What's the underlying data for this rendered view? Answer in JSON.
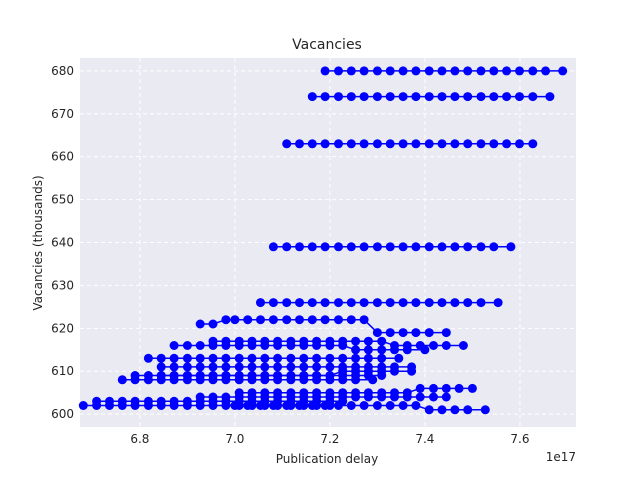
{
  "chart_data": {
    "type": "line",
    "title": "Vacancies",
    "xlabel": "Publication delay",
    "ylabel": "Vacancies (thousands)",
    "x_offset_label": "1e17",
    "x_scale_note": "x values in units of 1e17",
    "xlim": [
      6.674,
      7.718
    ],
    "ylim": [
      597,
      683
    ],
    "xticks": [
      6.8,
      7.0,
      7.2,
      7.4,
      7.6
    ],
    "xtick_labels": [
      "6.8",
      "7.0",
      "7.2",
      "7.4",
      "7.6"
    ],
    "yticks": [
      600,
      610,
      620,
      630,
      640,
      650,
      660,
      670,
      680
    ],
    "ytick_labels": [
      "600",
      "610",
      "620",
      "630",
      "640",
      "650",
      "660",
      "670",
      "680"
    ],
    "grid": true,
    "background": "#eaeaf2",
    "series_color": "#0000ff",
    "series": [
      {
        "x": [
          7.19,
          7.218,
          7.245,
          7.272,
          7.3,
          7.327,
          7.354,
          7.381,
          7.409,
          7.436,
          7.463,
          7.49,
          7.518,
          7.545,
          7.572,
          7.599,
          7.627,
          7.654,
          7.69
        ],
        "y": [
          680,
          680,
          680,
          680,
          680,
          680,
          680,
          680,
          680,
          680,
          680,
          680,
          680,
          680,
          680,
          680,
          680,
          680,
          680
        ]
      },
      {
        "x": [
          7.163,
          7.19,
          7.218,
          7.245,
          7.272,
          7.3,
          7.327,
          7.354,
          7.381,
          7.409,
          7.436,
          7.463,
          7.49,
          7.518,
          7.545,
          7.572,
          7.599,
          7.627,
          7.663
        ],
        "y": [
          674,
          674,
          674,
          674,
          674,
          674,
          674,
          674,
          674,
          674,
          674,
          674,
          674,
          674,
          674,
          674,
          674,
          674,
          674
        ]
      },
      {
        "x": [
          7.109,
          7.136,
          7.163,
          7.19,
          7.218,
          7.245,
          7.272,
          7.3,
          7.327,
          7.354,
          7.381,
          7.409,
          7.436,
          7.463,
          7.49,
          7.518,
          7.545,
          7.572,
          7.599,
          7.627
        ],
        "y": [
          663,
          663,
          663,
          663,
          663,
          663,
          663,
          663,
          663,
          663,
          663,
          663,
          663,
          663,
          663,
          663,
          663,
          663,
          663,
          663
        ]
      },
      {
        "x": [
          7.081,
          7.109,
          7.136,
          7.163,
          7.19,
          7.218,
          7.245,
          7.272,
          7.3,
          7.327,
          7.354,
          7.381,
          7.409,
          7.436,
          7.463,
          7.49,
          7.518,
          7.545,
          7.581
        ],
        "y": [
          639,
          639,
          639,
          639,
          639,
          639,
          639,
          639,
          639,
          639,
          639,
          639,
          639,
          639,
          639,
          639,
          639,
          639,
          639
        ]
      },
      {
        "x": [
          7.054,
          7.081,
          7.109,
          7.136,
          7.163,
          7.19,
          7.218,
          7.245,
          7.272,
          7.3,
          7.327,
          7.354,
          7.381,
          7.409,
          7.436,
          7.463,
          7.49,
          7.518,
          7.554
        ],
        "y": [
          626,
          626,
          626,
          626,
          626,
          626,
          626,
          626,
          626,
          626,
          626,
          626,
          626,
          626,
          626,
          626,
          626,
          626,
          626
        ]
      },
      {
        "x": [
          6.927,
          6.954,
          6.981,
          7.0,
          7.027,
          7.054,
          7.081,
          7.109,
          7.136,
          7.163,
          7.19,
          7.218,
          7.245,
          7.272,
          7.3,
          7.327,
          7.354,
          7.381,
          7.409,
          7.445
        ],
        "y": [
          621,
          621,
          622,
          622,
          622,
          622,
          622,
          622,
          622,
          622,
          622,
          622,
          622,
          622,
          619,
          619,
          619,
          619,
          619,
          619
        ]
      },
      {
        "x": [
          6.954,
          6.981,
          7.009,
          7.036,
          7.063,
          7.09,
          7.118,
          7.145,
          7.172,
          7.2,
          7.227,
          7.254,
          7.281,
          7.309,
          7.336,
          7.363,
          7.39,
          7.418,
          7.445,
          7.481
        ],
        "y": [
          617,
          617,
          617,
          617,
          617,
          617,
          617,
          617,
          617,
          617,
          617,
          617,
          617,
          617,
          616,
          616,
          616,
          616,
          616,
          616
        ]
      },
      {
        "x": [
          6.872,
          6.9,
          6.927,
          6.954,
          6.981,
          7.009,
          7.036,
          7.063,
          7.09,
          7.118,
          7.145,
          7.172,
          7.2,
          7.227,
          7.254,
          7.281,
          7.309,
          7.336,
          7.363,
          7.4
        ],
        "y": [
          616,
          616,
          616,
          616,
          616,
          616,
          616,
          616,
          616,
          616,
          616,
          616,
          616,
          616,
          615,
          615,
          615,
          615,
          615,
          615
        ]
      },
      {
        "x": [
          6.818,
          6.845,
          6.872,
          6.9,
          6.927,
          6.954,
          6.981,
          7.009,
          7.036,
          7.063,
          7.09,
          7.118,
          7.145,
          7.172,
          7.2,
          7.227,
          7.254,
          7.281,
          7.309,
          7.345
        ],
        "y": [
          613,
          613,
          613,
          613,
          613,
          613,
          613,
          613,
          613,
          613,
          613,
          613,
          613,
          613,
          613,
          613,
          613,
          613,
          613,
          613
        ]
      },
      {
        "x": [
          6.845,
          6.872,
          6.9,
          6.927,
          6.954,
          6.981,
          7.009,
          7.036,
          7.063,
          7.09,
          7.118,
          7.145,
          7.172,
          7.2,
          7.227,
          7.254,
          7.281,
          7.309,
          7.336,
          7.372
        ],
        "y": [
          611,
          611,
          611,
          611,
          611,
          611,
          611,
          611,
          611,
          611,
          611,
          611,
          611,
          611,
          611,
          611,
          611,
          611,
          611,
          611
        ]
      },
      {
        "x": [
          6.845,
          6.872,
          6.9,
          6.927,
          6.954,
          6.981,
          7.009,
          7.036,
          7.063,
          7.09,
          7.118,
          7.145,
          7.172,
          7.2,
          7.227,
          7.254,
          7.281,
          7.309,
          7.336,
          7.372
        ],
        "y": [
          609,
          609,
          609,
          609,
          609,
          609,
          609,
          609,
          609,
          609,
          609,
          609,
          609,
          609,
          610,
          610,
          610,
          610,
          610,
          610
        ]
      },
      {
        "x": [
          6.763,
          6.79,
          6.818,
          6.845,
          6.872,
          6.9,
          6.927,
          6.954,
          6.981,
          7.009,
          7.036,
          7.063,
          7.09,
          7.118,
          7.145,
          7.172,
          7.2,
          7.227,
          7.254,
          7.29
        ],
        "y": [
          608,
          608,
          608,
          608,
          608,
          608,
          608,
          608,
          608,
          608,
          608,
          608,
          608,
          608,
          608,
          608,
          608,
          608,
          608,
          608
        ]
      },
      {
        "x": [
          6.79,
          6.818,
          6.845,
          6.872,
          6.9,
          6.927,
          6.954,
          6.981,
          7.009,
          7.036,
          7.063,
          7.09,
          7.118,
          7.145,
          7.172,
          7.2,
          7.227,
          7.254,
          7.281,
          7.309
        ],
        "y": [
          609,
          609,
          609,
          609,
          609,
          609,
          609,
          609,
          609,
          609,
          609,
          609,
          609,
          609,
          609,
          609,
          609,
          609,
          609,
          609
        ]
      },
      {
        "x": [
          7.009,
          7.036,
          7.063,
          7.09,
          7.118,
          7.145,
          7.172,
          7.2,
          7.227,
          7.254,
          7.281,
          7.309,
          7.336,
          7.363,
          7.39,
          7.418,
          7.445,
          7.472,
          7.5
        ],
        "y": [
          605,
          605,
          605,
          605,
          605,
          605,
          605,
          605,
          605,
          605,
          605,
          605,
          605,
          605,
          606,
          606,
          606,
          606,
          606
        ]
      },
      {
        "x": [
          6.927,
          6.954,
          6.981,
          7.009,
          7.036,
          7.063,
          7.09,
          7.118,
          7.145,
          7.172,
          7.2,
          7.227,
          7.254,
          7.281,
          7.309,
          7.336,
          7.363,
          7.39,
          7.418,
          7.445
        ],
        "y": [
          604,
          604,
          604,
          604,
          604,
          604,
          604,
          604,
          604,
          604,
          604,
          604,
          604,
          604,
          604,
          604,
          604,
          604,
          604,
          604
        ]
      },
      {
        "x": [
          6.709,
          6.736,
          6.763,
          6.79,
          6.818,
          6.845,
          6.872,
          6.9,
          6.927,
          6.954,
          6.981,
          7.009,
          7.036,
          7.063,
          7.09,
          7.118,
          7.145,
          7.172,
          7.2,
          7.227
        ],
        "y": [
          603,
          603,
          603,
          603,
          603,
          603,
          603,
          603,
          603,
          603,
          603,
          603,
          603,
          603,
          603,
          603,
          603,
          603,
          603,
          603
        ]
      },
      {
        "x": [
          6.681,
          6.709,
          6.736,
          6.763,
          6.79,
          6.818,
          6.845,
          6.872,
          6.9,
          6.927,
          6.954,
          6.981,
          7.009,
          7.036,
          7.063,
          7.09,
          7.118,
          7.145,
          7.172,
          7.2
        ],
        "y": [
          602,
          602,
          602,
          602,
          602,
          602,
          602,
          602,
          602,
          602,
          602,
          602,
          602,
          602,
          602,
          602,
          602,
          602,
          602,
          602
        ]
      },
      {
        "x": [
          7.0,
          7.027,
          7.054,
          7.081,
          7.109,
          7.136,
          7.163,
          7.19,
          7.218,
          7.245,
          7.272,
          7.3,
          7.327,
          7.354,
          7.381,
          7.409,
          7.436,
          7.463,
          7.49,
          7.527
        ],
        "y": [
          602,
          602,
          602,
          602,
          602,
          602,
          602,
          602,
          602,
          602,
          602,
          602,
          602,
          602,
          602,
          601,
          601,
          601,
          601,
          601
        ]
      }
    ]
  }
}
